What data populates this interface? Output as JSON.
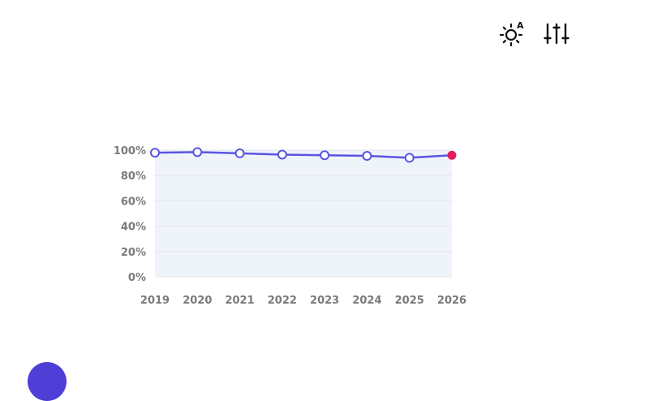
{
  "toolbar": {
    "theme_icon": "brightness-auto-icon",
    "filters_icon": "sliders-icon"
  },
  "colors": {
    "line": "#5b55e0",
    "area": "#eff4fb",
    "latest_point": "#e11d60",
    "tick_text": "#7a7a7a",
    "grid": "#e3e6ec",
    "avatar": "#4f3fd6"
  },
  "chart_data": {
    "type": "line",
    "title": "",
    "xlabel": "",
    "ylabel": "",
    "categories": [
      "2019",
      "2020",
      "2021",
      "2022",
      "2023",
      "2024",
      "2025",
      "2026"
    ],
    "values": [
      98,
      98.5,
      97.5,
      96.5,
      96,
      95.5,
      94,
      96
    ],
    "y_ticks": [
      "0%",
      "20%",
      "40%",
      "60%",
      "80%",
      "100%"
    ],
    "ylim": [
      0,
      100
    ],
    "grid": true,
    "legend": "none",
    "highlight_last_point": true
  }
}
